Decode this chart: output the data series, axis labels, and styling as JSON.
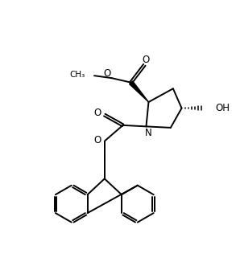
{
  "bg_color": "#ffffff",
  "line_color": "#000000",
  "lw": 1.4,
  "figsize": [
    2.93,
    3.31
  ],
  "dpi": 100,
  "xlim": [
    -1.0,
    8.5
  ],
  "ylim": [
    -0.3,
    10.5
  ]
}
